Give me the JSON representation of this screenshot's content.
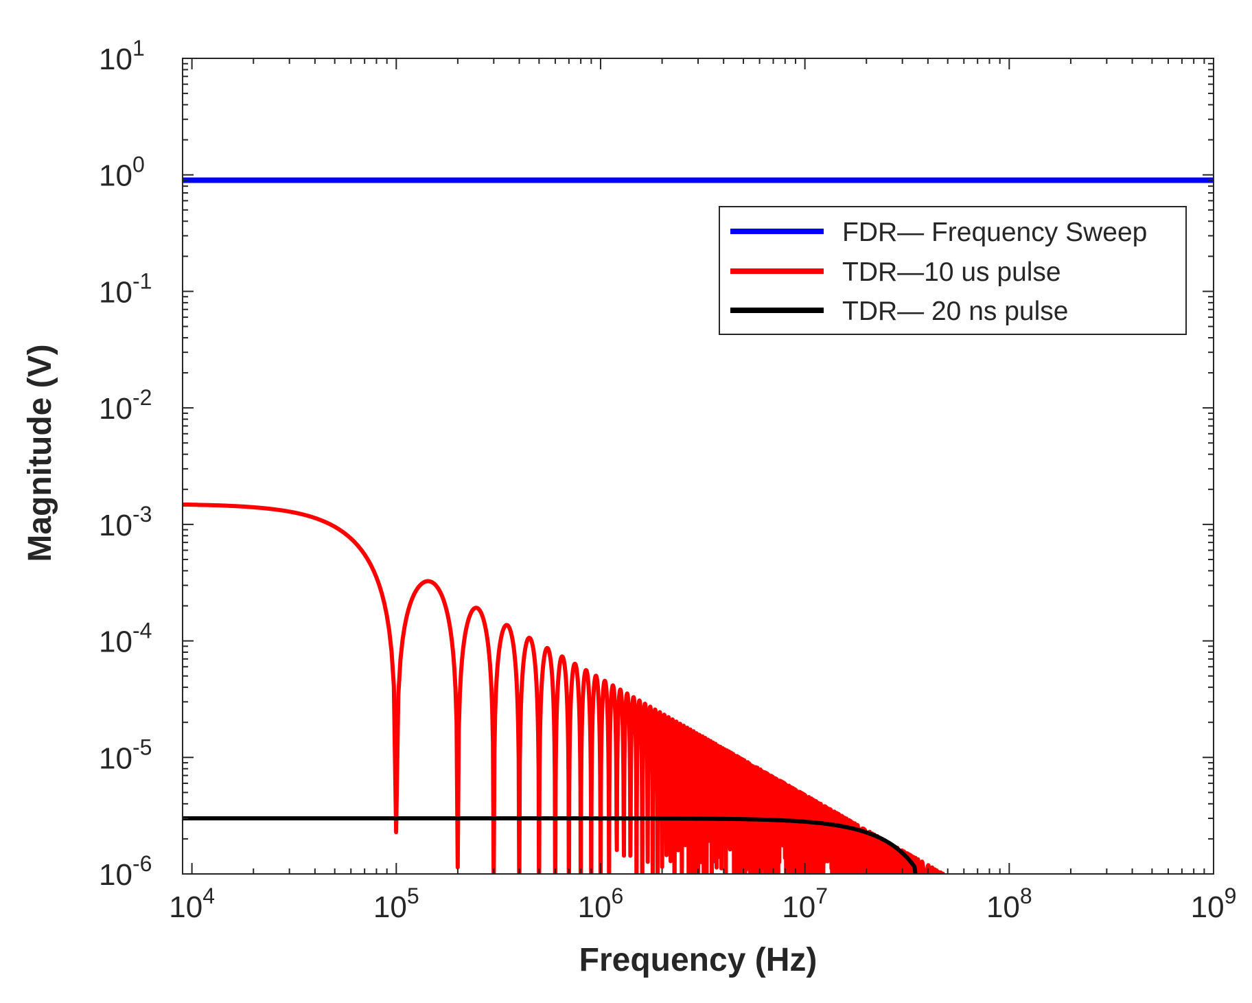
{
  "chart_data": {
    "type": "line",
    "title": "",
    "xlabel": "Frequency (Hz)",
    "ylabel": "Magnitude (V)",
    "xscale": "log",
    "yscale": "log",
    "xlim": [
      9000,
      1000000000
    ],
    "ylim": [
      1e-06,
      10
    ],
    "grid": false,
    "x_ticks": [
      {
        "value": 10000,
        "base": "10",
        "exp": "4"
      },
      {
        "value": 100000,
        "base": "10",
        "exp": "5"
      },
      {
        "value": 1000000,
        "base": "10",
        "exp": "6"
      },
      {
        "value": 10000000,
        "base": "10",
        "exp": "7"
      },
      {
        "value": 100000000,
        "base": "10",
        "exp": "8"
      },
      {
        "value": 1000000000,
        "base": "10",
        "exp": "9"
      }
    ],
    "y_ticks": [
      {
        "value": 1e-06,
        "base": "10",
        "exp": "-6"
      },
      {
        "value": 1e-05,
        "base": "10",
        "exp": "-5"
      },
      {
        "value": 0.0001,
        "base": "10",
        "exp": "-4"
      },
      {
        "value": 0.001,
        "base": "10",
        "exp": "-3"
      },
      {
        "value": 0.01,
        "base": "10",
        "exp": "-2"
      },
      {
        "value": 0.1,
        "base": "10",
        "exp": "-1"
      },
      {
        "value": 1,
        "base": "10",
        "exp": "0"
      },
      {
        "value": 10,
        "base": "10",
        "exp": "1"
      }
    ],
    "legend_position": "top-right",
    "series": [
      {
        "name": "FDR— Frequency Sweep",
        "color": "#0000ff",
        "model": "constant",
        "amplitude": 0.9
      },
      {
        "name": "TDR—10 us pulse",
        "color": "#ff0000",
        "model": "sinc",
        "amplitude": 0.0015,
        "pulse_width_s": 1e-05,
        "cutoff_hz": 48000000
      },
      {
        "name": "TDR— 20 ns pulse",
        "color": "#000000",
        "model": "sinc",
        "amplitude": 3e-06,
        "pulse_width_s": 2e-08,
        "cutoff_hz": 35000000
      }
    ]
  }
}
